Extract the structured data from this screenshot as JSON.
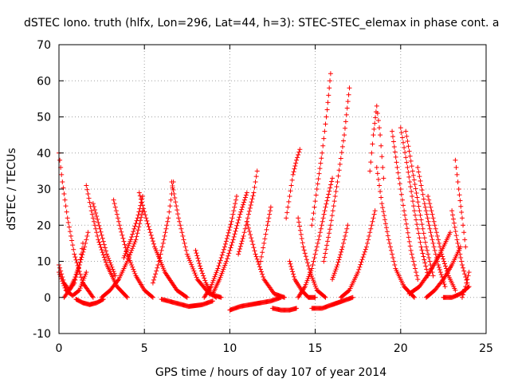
{
  "chart_data": {
    "type": "scatter",
    "title": "dSTEC Iono. truth (hlfx, Lon=296, Lat=44, h=3): STEC-STEC_elemax in phase cont. a",
    "xlabel": "GPS time / hours of day 107 of year 2014",
    "ylabel": "dSTEC  / TECUs",
    "xlim": [
      0,
      25
    ],
    "ylim": [
      -10,
      70
    ],
    "x_ticks": [
      0,
      5,
      10,
      15,
      20,
      25
    ],
    "y_ticks": [
      -10,
      0,
      10,
      20,
      30,
      40,
      50,
      60,
      70
    ],
    "grid": true,
    "legend": "none",
    "marker": "+",
    "color": "#ff0000",
    "series": [
      {
        "x": [
          0.0,
          0.3,
          0.6,
          0.9,
          1.2,
          1.4
        ],
        "y": [
          9,
          4,
          2,
          4,
          9,
          15
        ]
      },
      {
        "x": [
          0.0,
          0.4,
          0.8,
          1.2,
          1.6
        ],
        "y": [
          7,
          2,
          0.5,
          2,
          7
        ]
      },
      {
        "x": [
          0.0,
          0.2,
          0.5,
          0.9,
          1.4,
          2.0
        ],
        "y": [
          40,
          32,
          22,
          12,
          4,
          0
        ]
      },
      {
        "x": [
          0.3,
          0.6,
          0.9,
          1.2,
          1.5,
          1.7
        ],
        "y": [
          0,
          2,
          5,
          9,
          14,
          18
        ]
      },
      {
        "x": [
          1.0,
          1.4,
          1.8,
          2.2,
          2.6
        ],
        "y": [
          -0.5,
          -1.5,
          -2.0,
          -1.5,
          -0.5
        ]
      },
      {
        "x": [
          1.6,
          1.9,
          2.3,
          2.8,
          3.4,
          4.0
        ],
        "y": [
          31,
          24,
          16,
          9,
          3,
          0
        ]
      },
      {
        "x": [
          2.0,
          2.4,
          2.8,
          3.3
        ],
        "y": [
          26,
          19,
          12,
          6
        ]
      },
      {
        "x": [
          2.5,
          3.0,
          3.5,
          4.0,
          4.5,
          4.9
        ],
        "y": [
          0,
          2,
          5,
          10,
          16,
          24
        ]
      },
      {
        "x": [
          3.2,
          3.6,
          4.0,
          4.5,
          5.0,
          5.5
        ],
        "y": [
          27,
          19,
          12,
          6,
          2,
          0
        ]
      },
      {
        "x": [
          3.8,
          4.2,
          4.6,
          4.9
        ],
        "y": [
          11,
          16,
          22,
          28
        ]
      },
      {
        "x": [
          4.7,
          5.1,
          5.6,
          6.2,
          6.9,
          7.5
        ],
        "y": [
          29,
          22,
          14,
          7,
          2,
          0
        ]
      },
      {
        "x": [
          5.5,
          5.8,
          6.1,
          6.4,
          6.7
        ],
        "y": [
          4,
          9,
          15,
          22,
          32
        ]
      },
      {
        "x": [
          6.6,
          7.0,
          7.5,
          8.1,
          8.8,
          9.5
        ],
        "y": [
          32,
          22,
          12,
          5,
          1,
          0
        ]
      },
      {
        "x": [
          8.0,
          8.3,
          8.6,
          8.9,
          9.2
        ],
        "y": [
          13,
          8,
          4,
          1,
          0
        ]
      },
      {
        "x": [
          6.0,
          6.8,
          7.6,
          8.4,
          9.0
        ],
        "y": [
          -0.5,
          -1.5,
          -2.5,
          -2.0,
          -1.0
        ]
      },
      {
        "x": [
          8.5,
          8.9,
          9.3,
          9.7,
          10.1,
          10.4
        ],
        "y": [
          0,
          3,
          8,
          14,
          21,
          28
        ]
      },
      {
        "x": [
          9.0,
          9.4,
          9.8,
          10.2,
          10.6,
          11.0
        ],
        "y": [
          1,
          5,
          10,
          16,
          23,
          29
        ]
      },
      {
        "x": [
          10.0,
          10.6,
          11.2,
          11.8,
          12.4,
          13.0
        ],
        "y": [
          -3.5,
          -2.5,
          -2.0,
          -1.5,
          -1.0,
          0
        ]
      },
      {
        "x": [
          10.5,
          10.8,
          11.1,
          11.4,
          11.6
        ],
        "y": [
          12,
          17,
          23,
          29,
          35
        ]
      },
      {
        "x": [
          11.0,
          11.5,
          12.0,
          12.6,
          13.2
        ],
        "y": [
          21,
          12,
          5,
          1,
          0
        ]
      },
      {
        "x": [
          11.8,
          12.0,
          12.2,
          12.4
        ],
        "y": [
          10,
          15,
          20,
          25
        ]
      },
      {
        "x": [
          12.5,
          13.0,
          13.5,
          13.9
        ],
        "y": [
          -3,
          -3.5,
          -3.5,
          -3
        ]
      },
      {
        "x": [
          13.3,
          13.5,
          13.7,
          13.9,
          14.1
        ],
        "y": [
          22,
          28,
          34,
          38,
          41
        ]
      },
      {
        "x": [
          13.5,
          13.8,
          14.2,
          14.6,
          15.0
        ],
        "y": [
          10,
          5,
          2,
          0,
          0
        ]
      },
      {
        "x": [
          14.0,
          14.3,
          14.7,
          15.1,
          15.6
        ],
        "y": [
          22,
          14,
          7,
          2,
          0
        ]
      },
      {
        "x": [
          14.8,
          15.1,
          15.4,
          15.7,
          15.9
        ],
        "y": [
          20,
          30,
          40,
          52,
          62
        ]
      },
      {
        "x": [
          14.0,
          14.4,
          14.8,
          15.2,
          15.6,
          16.0
        ],
        "y": [
          0,
          3,
          8,
          16,
          25,
          33
        ]
      },
      {
        "x": [
          15.5,
          15.9,
          16.3,
          16.7,
          17.0
        ],
        "y": [
          10,
          20,
          32,
          45,
          58
        ]
      },
      {
        "x": [
          16.0,
          16.3,
          16.6,
          16.9
        ],
        "y": [
          5,
          9,
          14,
          20
        ]
      },
      {
        "x": [
          14.8,
          15.4,
          16.0,
          16.6,
          17.2
        ],
        "y": [
          -3,
          -3,
          -2,
          -1,
          0
        ]
      },
      {
        "x": [
          16.5,
          17.0,
          17.5,
          18.0,
          18.5
        ],
        "y": [
          0,
          2,
          7,
          14,
          24
        ]
      },
      {
        "x": [
          18.2,
          18.4,
          18.6,
          18.8,
          19.0
        ],
        "y": [
          35,
          45,
          53,
          45,
          33
        ]
      },
      {
        "x": [
          18.6,
          18.9,
          19.3,
          19.7,
          20.2,
          20.8
        ],
        "y": [
          36,
          26,
          16,
          8,
          3,
          0
        ]
      },
      {
        "x": [
          19.5,
          19.8,
          20.2,
          20.6,
          21.0
        ],
        "y": [
          46,
          36,
          24,
          13,
          5
        ]
      },
      {
        "x": [
          20.0,
          20.4,
          20.8,
          21.2,
          21.6
        ],
        "y": [
          47,
          36,
          24,
          14,
          6
        ]
      },
      {
        "x": [
          20.3,
          20.7,
          21.1,
          21.5,
          21.9
        ],
        "y": [
          46,
          35,
          24,
          14,
          6
        ]
      },
      {
        "x": [
          21.0,
          21.4,
          21.8,
          22.2,
          22.6
        ],
        "y": [
          36,
          26,
          17,
          9,
          3
        ]
      },
      {
        "x": [
          21.6,
          22.0,
          22.4,
          22.8,
          23.2
        ],
        "y": [
          28,
          20,
          12,
          6,
          2
        ]
      },
      {
        "x": [
          20.5,
          21.1,
          21.7,
          22.3,
          22.9
        ],
        "y": [
          1,
          3,
          7,
          12,
          18
        ]
      },
      {
        "x": [
          21.5,
          22.0,
          22.5,
          23.0,
          23.5
        ],
        "y": [
          0,
          2,
          5,
          9,
          14
        ]
      },
      {
        "x": [
          23.2,
          23.4,
          23.6,
          23.8
        ],
        "y": [
          38,
          30,
          22,
          14
        ]
      },
      {
        "x": [
          23.0,
          23.3,
          23.6,
          23.9
        ],
        "y": [
          24,
          16,
          9,
          4
        ]
      },
      {
        "x": [
          22.5,
          23.0,
          23.5,
          24.0
        ],
        "y": [
          0,
          0,
          1,
          3
        ]
      },
      {
        "x": [
          23.6,
          23.8,
          24.0
        ],
        "y": [
          0,
          3,
          7
        ]
      }
    ]
  }
}
